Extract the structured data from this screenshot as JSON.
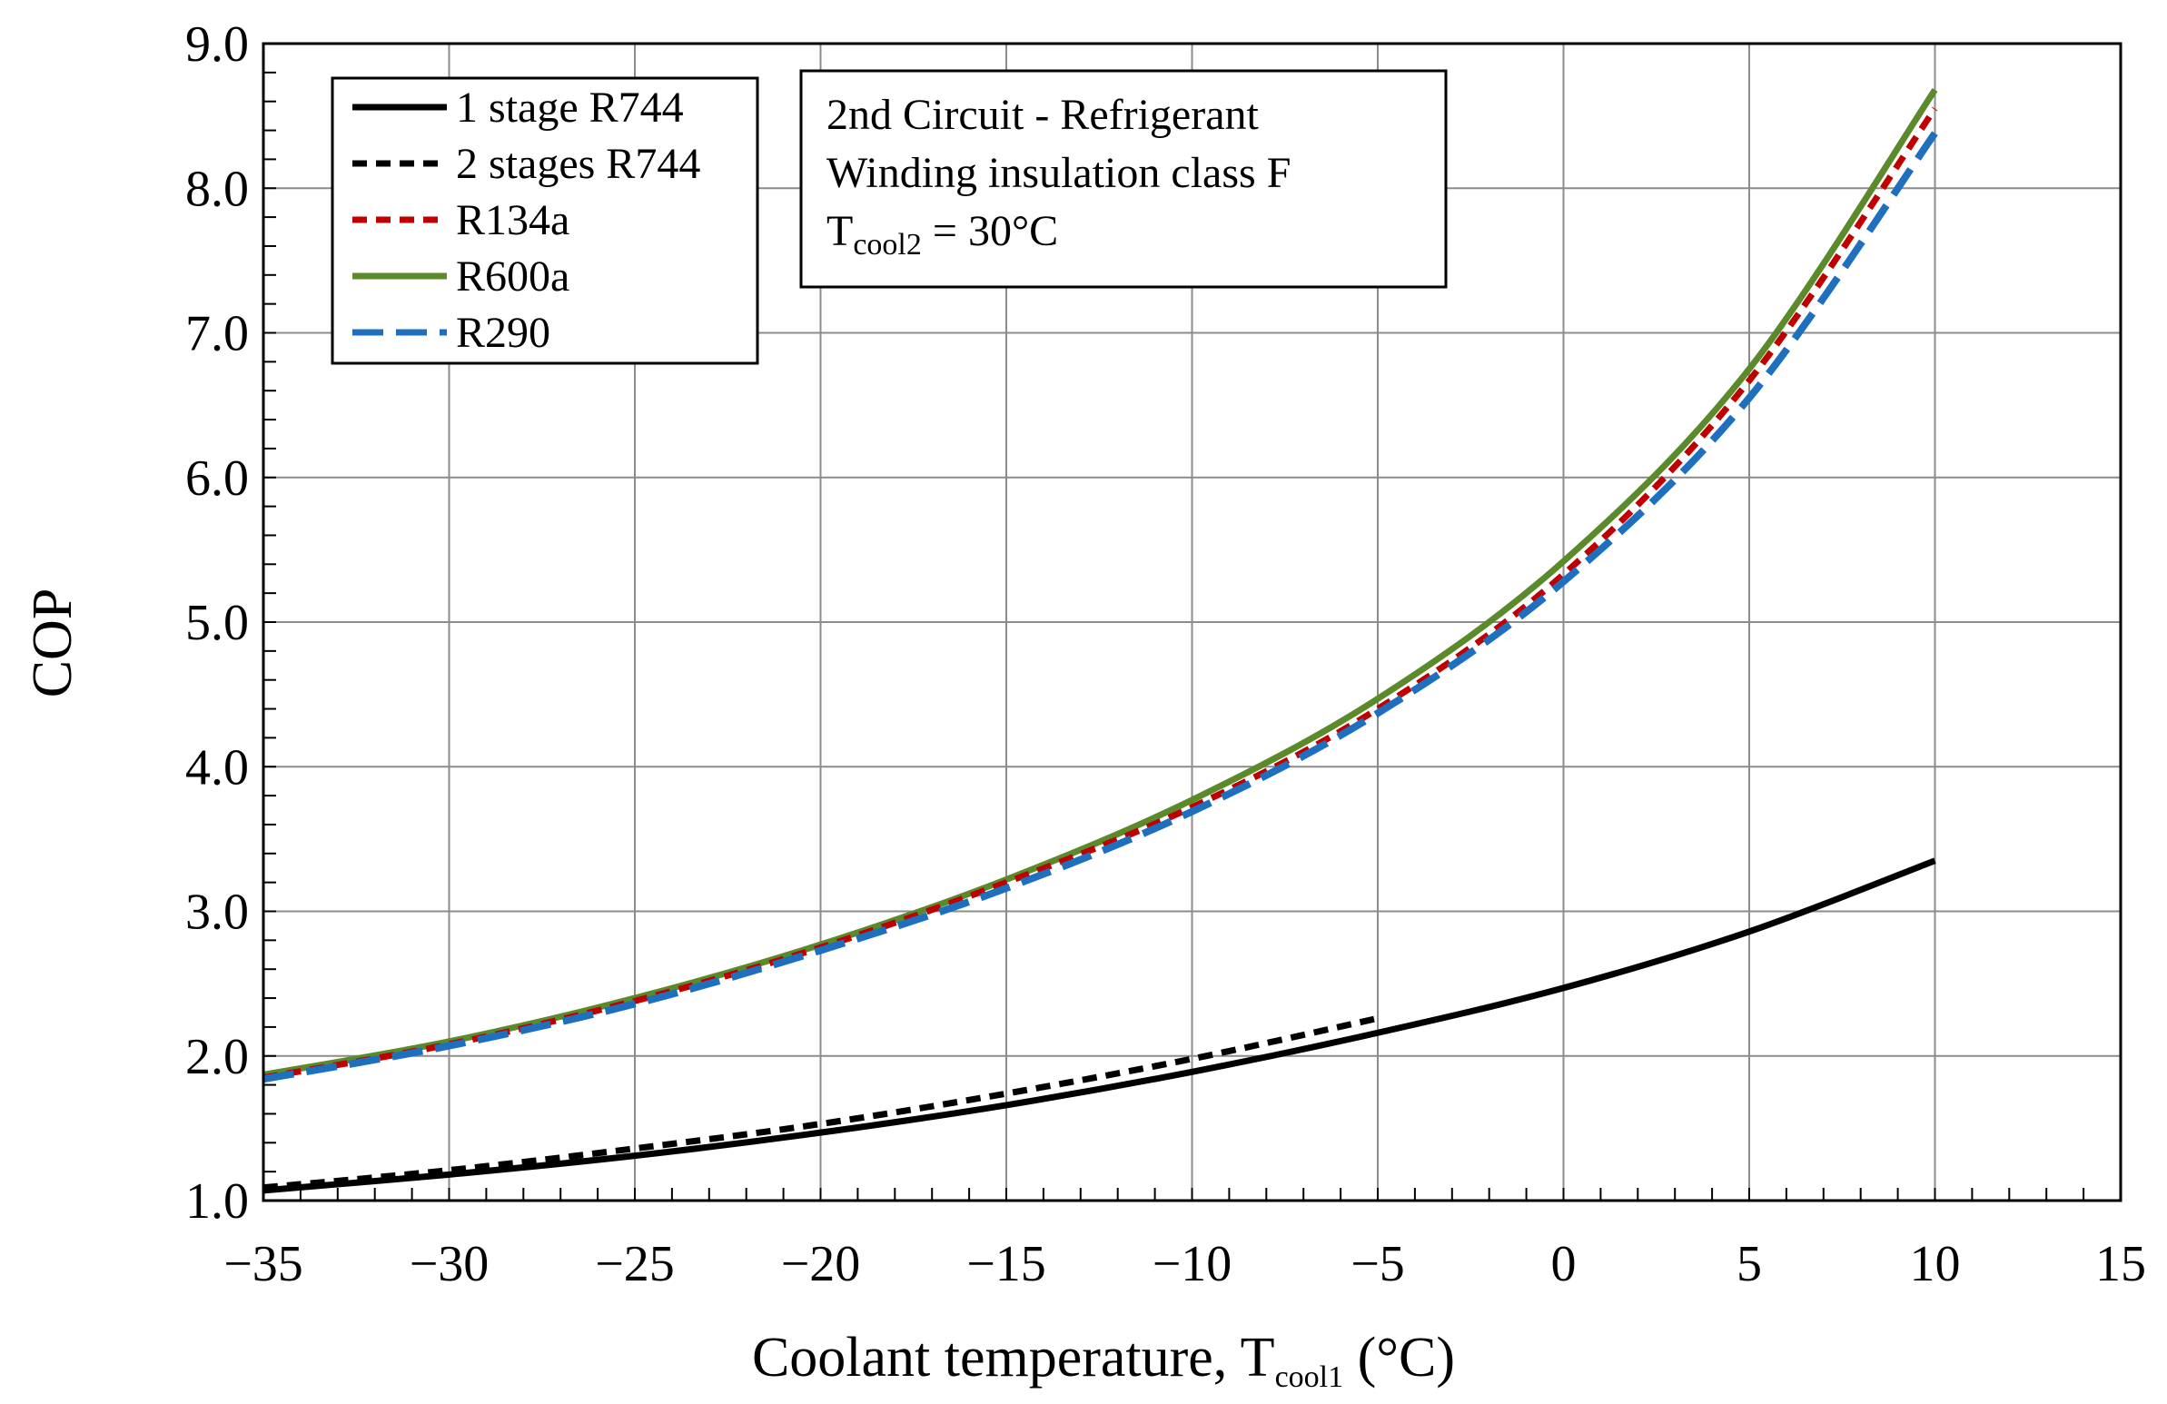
{
  "chart_data": {
    "type": "line",
    "xlabel": {
      "main": "Coolant temperature, T",
      "sub": "cool1",
      "unit": " (°C)"
    },
    "ylabel": "COP",
    "xlim": [
      -35,
      15
    ],
    "ylim": [
      1.0,
      9.0
    ],
    "x_ticks": [
      -35,
      -30,
      -25,
      -20,
      -15,
      -10,
      -5,
      0,
      5,
      10,
      15
    ],
    "x_tick_labels": [
      "−35",
      "−30",
      "−25",
      "−20",
      "−15",
      "−10",
      "−5",
      "0",
      "5",
      "10",
      "15"
    ],
    "y_ticks": [
      1,
      2,
      3,
      4,
      5,
      6,
      7,
      8,
      9
    ],
    "y_tick_labels": [
      "1.0",
      "2.0",
      "3.0",
      "4.0",
      "5.0",
      "6.0",
      "7.0",
      "8.0",
      "9.0"
    ],
    "grid": true,
    "legend_position": "top-left",
    "annotation": {
      "lines": [
        "2nd Circuit - Refrigerant",
        "Winding insulation class F"
      ],
      "formula": {
        "base": "T",
        "sub": "cool2",
        "rest": " = 30°C"
      }
    },
    "series": [
      {
        "name": "1 stage R744",
        "color": "#000000",
        "style": "solid",
        "x": [
          -35,
          -30,
          -25,
          -20,
          -15,
          -10,
          -5,
          0,
          5,
          10
        ],
        "y": [
          1.07,
          1.18,
          1.31,
          1.47,
          1.66,
          1.89,
          2.16,
          2.47,
          2.86,
          3.35
        ]
      },
      {
        "name": "2 stages R744",
        "color": "#000000",
        "style": "dash",
        "x": [
          -35,
          -30,
          -25,
          -20,
          -15,
          -10,
          -5
        ],
        "y": [
          1.09,
          1.21,
          1.36,
          1.53,
          1.74,
          1.98,
          2.26
        ]
      },
      {
        "name": "R134a",
        "color": "#c00000",
        "style": "dash",
        "x": [
          -35,
          -30,
          -25,
          -20,
          -15,
          -10,
          -5,
          0,
          5,
          10
        ],
        "y": [
          1.85,
          2.08,
          2.38,
          2.75,
          3.2,
          3.72,
          4.4,
          5.33,
          6.67,
          8.55
        ]
      },
      {
        "name": "R600a",
        "color": "#5a8a2a",
        "style": "solid",
        "x": [
          -35,
          -30,
          -25,
          -20,
          -15,
          -10,
          -5,
          0,
          5,
          10
        ],
        "y": [
          1.87,
          2.1,
          2.4,
          2.77,
          3.22,
          3.77,
          4.47,
          5.42,
          6.75,
          8.68
        ]
      },
      {
        "name": "R290",
        "color": "#1f6fbf",
        "style": "longdash",
        "x": [
          -35,
          -30,
          -25,
          -20,
          -15,
          -10,
          -5,
          0,
          5,
          10
        ],
        "y": [
          1.84,
          2.07,
          2.36,
          2.73,
          3.16,
          3.69,
          4.37,
          5.28,
          6.55,
          8.38
        ]
      }
    ]
  }
}
